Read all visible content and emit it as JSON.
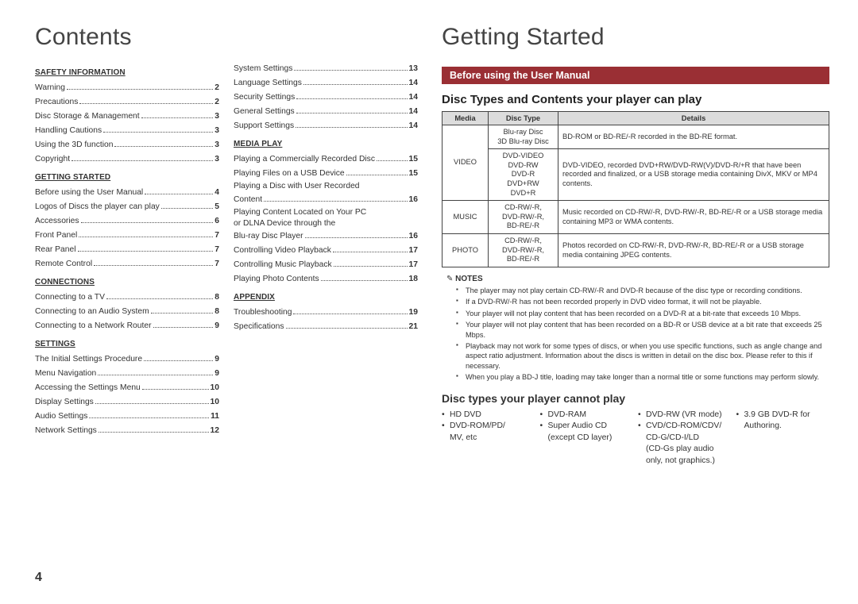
{
  "page_number": "4",
  "left": {
    "title": "Contents",
    "col1": [
      {
        "head": "SAFETY INFORMATION"
      },
      {
        "label": "Warning",
        "page": "2"
      },
      {
        "label": "Precautions",
        "page": "2"
      },
      {
        "label": "Disc Storage & Management",
        "page": "3"
      },
      {
        "label": "Handling Cautions",
        "page": "3"
      },
      {
        "label": "Using the 3D function",
        "page": "3"
      },
      {
        "label": "Copyright",
        "page": "3"
      },
      {
        "head": "GETTING STARTED"
      },
      {
        "label": "Before using the User Manual",
        "page": "4"
      },
      {
        "label": "Logos of Discs the player can play",
        "page": "5"
      },
      {
        "label": "Accessories",
        "page": "6"
      },
      {
        "label": "Front Panel",
        "page": "7"
      },
      {
        "label": "Rear Panel",
        "page": "7"
      },
      {
        "label": "Remote Control",
        "page": "7"
      },
      {
        "head": "CONNECTIONS"
      },
      {
        "label": "Connecting to a TV",
        "page": "8"
      },
      {
        "label": "Connecting to an Audio System",
        "page": "8"
      },
      {
        "label": "Connecting to a Network Router",
        "page": "9"
      },
      {
        "head": "SETTINGS"
      },
      {
        "label": "The Initial Settings Procedure",
        "page": "9"
      },
      {
        "label": "Menu Navigation",
        "page": "9"
      },
      {
        "label": "Accessing the Settings Menu",
        "page": "10"
      },
      {
        "label": "Display Settings",
        "page": "10"
      },
      {
        "label": "Audio Settings",
        "page": "11"
      },
      {
        "label": "Network Settings",
        "page": "12"
      }
    ],
    "col2": [
      {
        "label": "System Settings",
        "page": "13"
      },
      {
        "label": "Language Settings",
        "page": "14"
      },
      {
        "label": "Security Settings",
        "page": "14"
      },
      {
        "label": "General Settings",
        "page": "14"
      },
      {
        "label": "Support Settings",
        "page": "14"
      },
      {
        "head": "MEDIA PLAY"
      },
      {
        "label": "Playing a Commercially Recorded Disc",
        "page": "15"
      },
      {
        "label": "Playing Files on a USB Device",
        "page": "15"
      },
      {
        "wrap_a": "Playing a Disc with User Recorded",
        "wrap_b": "Content",
        "page": "16"
      },
      {
        "wrap_a": "Playing Content Located on Your PC",
        "wrap_b": "or DLNA Device through the",
        "wrap_c": "Blu-ray Disc Player",
        "page": "16"
      },
      {
        "label": "Controlling Video Playback",
        "page": "17"
      },
      {
        "label": "Controlling Music Playback",
        "page": "17"
      },
      {
        "label": "Playing Photo Contents",
        "page": "18"
      },
      {
        "head": "APPENDIX"
      },
      {
        "label": "Troubleshooting",
        "page": "19"
      },
      {
        "label": "Specifications",
        "page": "21"
      }
    ]
  },
  "right": {
    "title": "Getting Started",
    "banner": "Before using the User Manual",
    "subhead": "Disc Types and Contents your player can play",
    "table": {
      "headers": [
        "Media",
        "Disc Type",
        "Details"
      ],
      "rows": [
        {
          "media": "VIDEO",
          "types": "Blu-ray Disc\n3D Blu-ray Disc",
          "details": "BD-ROM or BD-RE/-R recorded in the BD-RE format."
        },
        {
          "media": "",
          "types": "DVD-VIDEO\nDVD-RW\nDVD-R\nDVD+RW\nDVD+R",
          "details": "DVD-VIDEO, recorded DVD+RW/DVD-RW(V)/DVD-R/+R that have been recorded and finalized, or a USB storage media containing DivX, MKV or MP4 contents."
        },
        {
          "media": "MUSIC",
          "types": "CD-RW/-R,\nDVD-RW/-R,\nBD-RE/-R",
          "details": "Music recorded on CD-RW/-R, DVD-RW/-R, BD-RE/-R or a USB storage media containing MP3 or WMA contents."
        },
        {
          "media": "PHOTO",
          "types": "CD-RW/-R,\nDVD-RW/-R,\nBD-RE/-R",
          "details": "Photos recorded on CD-RW/-R, DVD-RW/-R, BD-RE/-R or a USB storage media containing JPEG contents."
        }
      ]
    },
    "notes_head": "NOTES",
    "notes": [
      "The player may not play certain CD-RW/-R and DVD-R because of the disc type or recording conditions.",
      "If a DVD-RW/-R has not been recorded properly in DVD video format, it will not be playable.",
      "Your player will not play content that has been recorded on a DVD-R at a bit-rate that exceeds 10 Mbps.",
      "Your player will not play content that has been recorded on a BD-R or USB device at a bit rate that exceeds 25 Mbps.",
      "Playback may not work for some types of discs, or when you use specific functions, such as angle change and aspect ratio adjustment. Information about the discs is written in detail on the disc box. Please refer to this if necessary.",
      "When you play a BD-J title, loading may take longer than a normal title or some functions may perform slowly."
    ],
    "subhead2": "Disc types your player cannot play",
    "cannot": {
      "c1": [
        {
          "b": true,
          "t": "HD DVD"
        },
        {
          "b": true,
          "t": "DVD-ROM/PD/"
        },
        {
          "b": false,
          "t": "MV, etc"
        }
      ],
      "c2": [
        {
          "b": true,
          "t": "DVD-RAM"
        },
        {
          "b": true,
          "t": "Super Audio CD"
        },
        {
          "b": false,
          "t": "(except CD layer)"
        }
      ],
      "c3": [
        {
          "b": true,
          "t": "DVD-RW (VR mode)"
        },
        {
          "b": true,
          "t": "CVD/CD-ROM/CDV/"
        },
        {
          "b": false,
          "t": "CD-G/CD-I/LD"
        },
        {
          "b": false,
          "t": "(CD-Gs play audio"
        },
        {
          "b": false,
          "t": "only, not graphics.)"
        }
      ],
      "c4": [
        {
          "b": true,
          "t": "3.9 GB DVD-R for"
        },
        {
          "b": false,
          "t": "Authoring."
        }
      ]
    }
  }
}
